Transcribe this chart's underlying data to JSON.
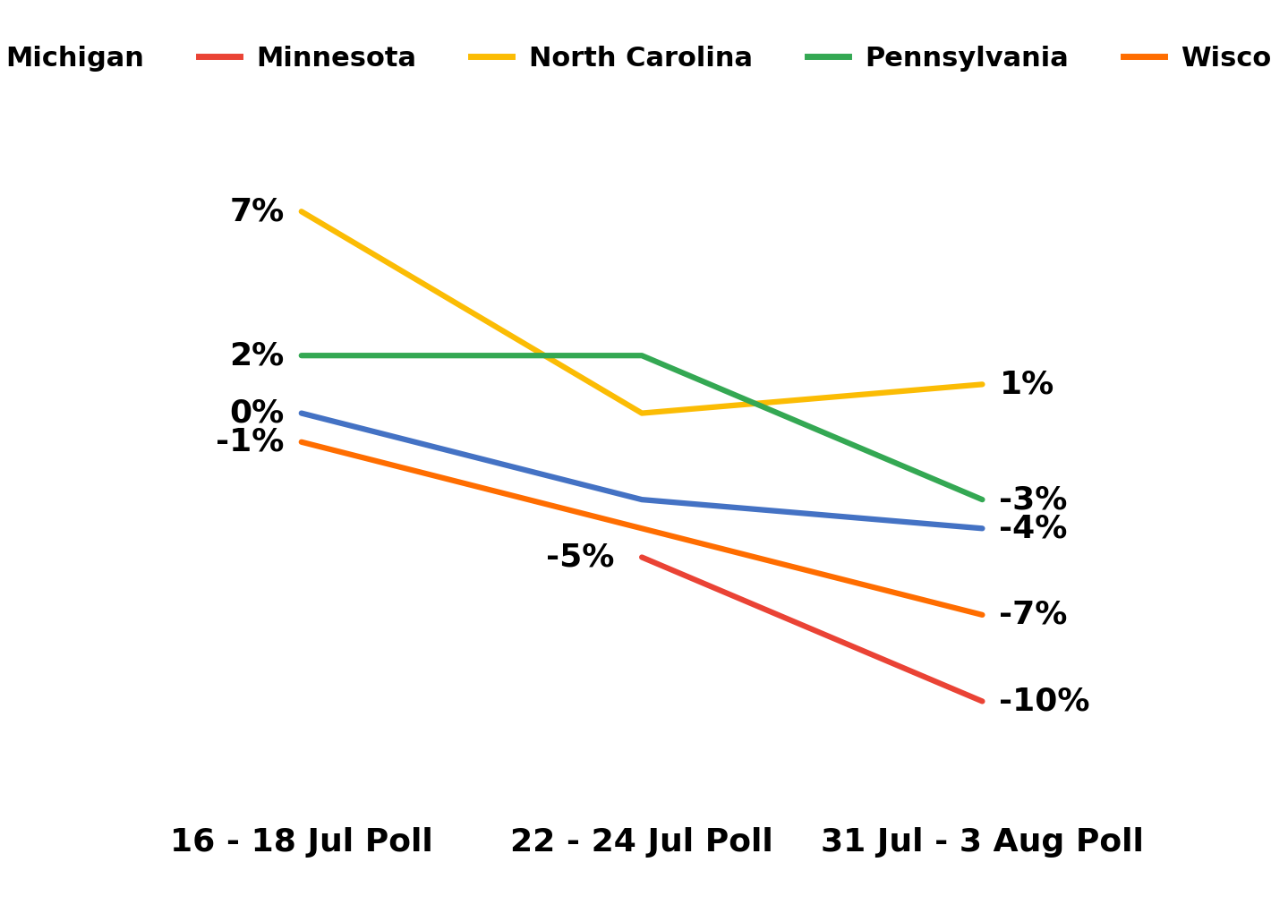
{
  "states": [
    "Michigan",
    "Minnesota",
    "North Carolina",
    "Pennsylvania",
    "Wisconsin"
  ],
  "colors": [
    "#4472C4",
    "#EA4335",
    "#FBBC04",
    "#34A853",
    "#FF6D00"
  ],
  "x_labels": [
    "16 - 18 Jul Poll",
    "22 - 24 Jul Poll",
    "31 Jul - 3 Aug Poll"
  ],
  "x_positions": [
    0,
    1,
    2
  ],
  "data": {
    "Michigan": [
      0,
      -3,
      -4
    ],
    "Minnesota": [
      null,
      -5,
      -10
    ],
    "North Carolina": [
      7,
      0,
      1
    ],
    "Pennsylvania": [
      2,
      2,
      -3
    ],
    "Wisconsin": [
      -1,
      -4,
      -7
    ]
  },
  "left_labels": {
    "Michigan": [
      0,
      0,
      "0%"
    ],
    "North Carolina": [
      0,
      7,
      "7%"
    ],
    "Pennsylvania": [
      0,
      2,
      "2%"
    ],
    "Wisconsin": [
      0,
      -1,
      "-1%"
    ]
  },
  "mid_labels": {
    "Minnesota": [
      1,
      -5,
      "-5%"
    ]
  },
  "right_labels": {
    "Michigan": [
      2,
      -4,
      "-4%"
    ],
    "Minnesota": [
      2,
      -10,
      "-10%"
    ],
    "North Carolina": [
      2,
      1,
      "1%"
    ],
    "Pennsylvania": [
      2,
      -3,
      "-3%"
    ],
    "Wisconsin": [
      2,
      -7,
      "-7%"
    ]
  },
  "line_width": 4.5,
  "label_fontsize": 26,
  "tick_fontsize": 26,
  "legend_fontsize": 22,
  "background_color": "#FFFFFF"
}
